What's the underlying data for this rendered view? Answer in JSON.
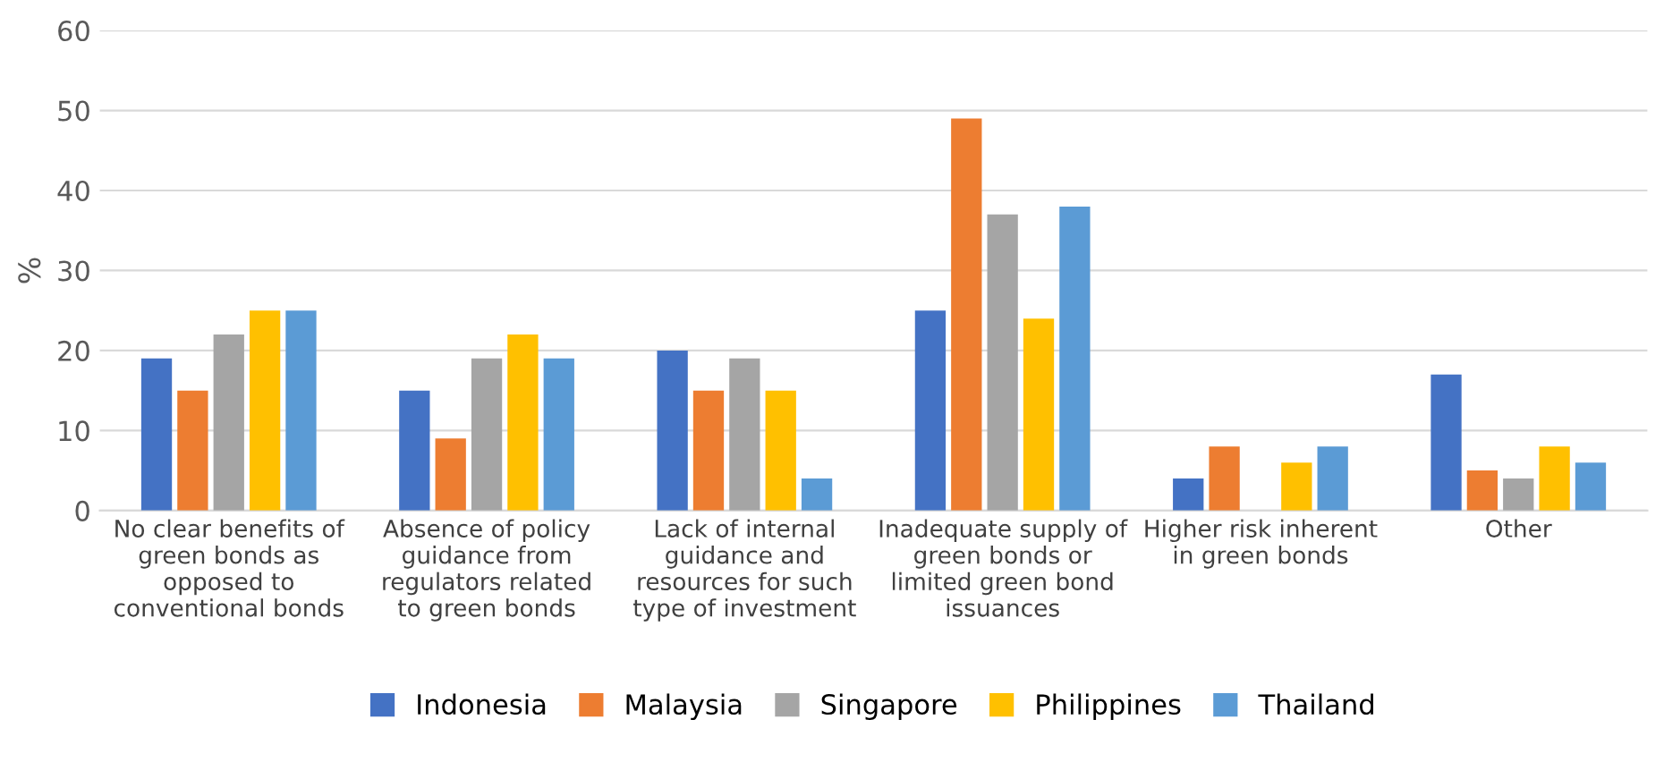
{
  "chart_data": {
    "type": "bar",
    "ylabel": "%",
    "categories": [
      "No clear benefits of green bonds as opposed to conventional bonds",
      "Absence of policy guidance from regulators related to green bonds",
      "Lack of internal guidance and resources for such type of investment",
      "Inadequate supply of green bonds or limited green bond issuances",
      "Higher risk inherent in green bonds",
      "Other"
    ],
    "series": [
      {
        "name": "Indonesia",
        "color": "#4472c4",
        "values": [
          19,
          15,
          20,
          25,
          4,
          17
        ]
      },
      {
        "name": "Malaysia",
        "color": "#ed7d31",
        "values": [
          15,
          9,
          15,
          49,
          8,
          5
        ]
      },
      {
        "name": "Singapore",
        "color": "#a5a5a5",
        "values": [
          22,
          19,
          19,
          37,
          0,
          4
        ]
      },
      {
        "name": "Philippines",
        "color": "#ffc000",
        "values": [
          25,
          22,
          15,
          24,
          6,
          8
        ]
      },
      {
        "name": "Thailand",
        "color": "#5b9bd5",
        "values": [
          25,
          19,
          4,
          38,
          8,
          6
        ]
      }
    ],
    "ylim": [
      0,
      60
    ],
    "yticks": [
      0,
      10,
      20,
      30,
      40,
      50,
      60
    ],
    "grid": "y",
    "legend": "bottom"
  }
}
